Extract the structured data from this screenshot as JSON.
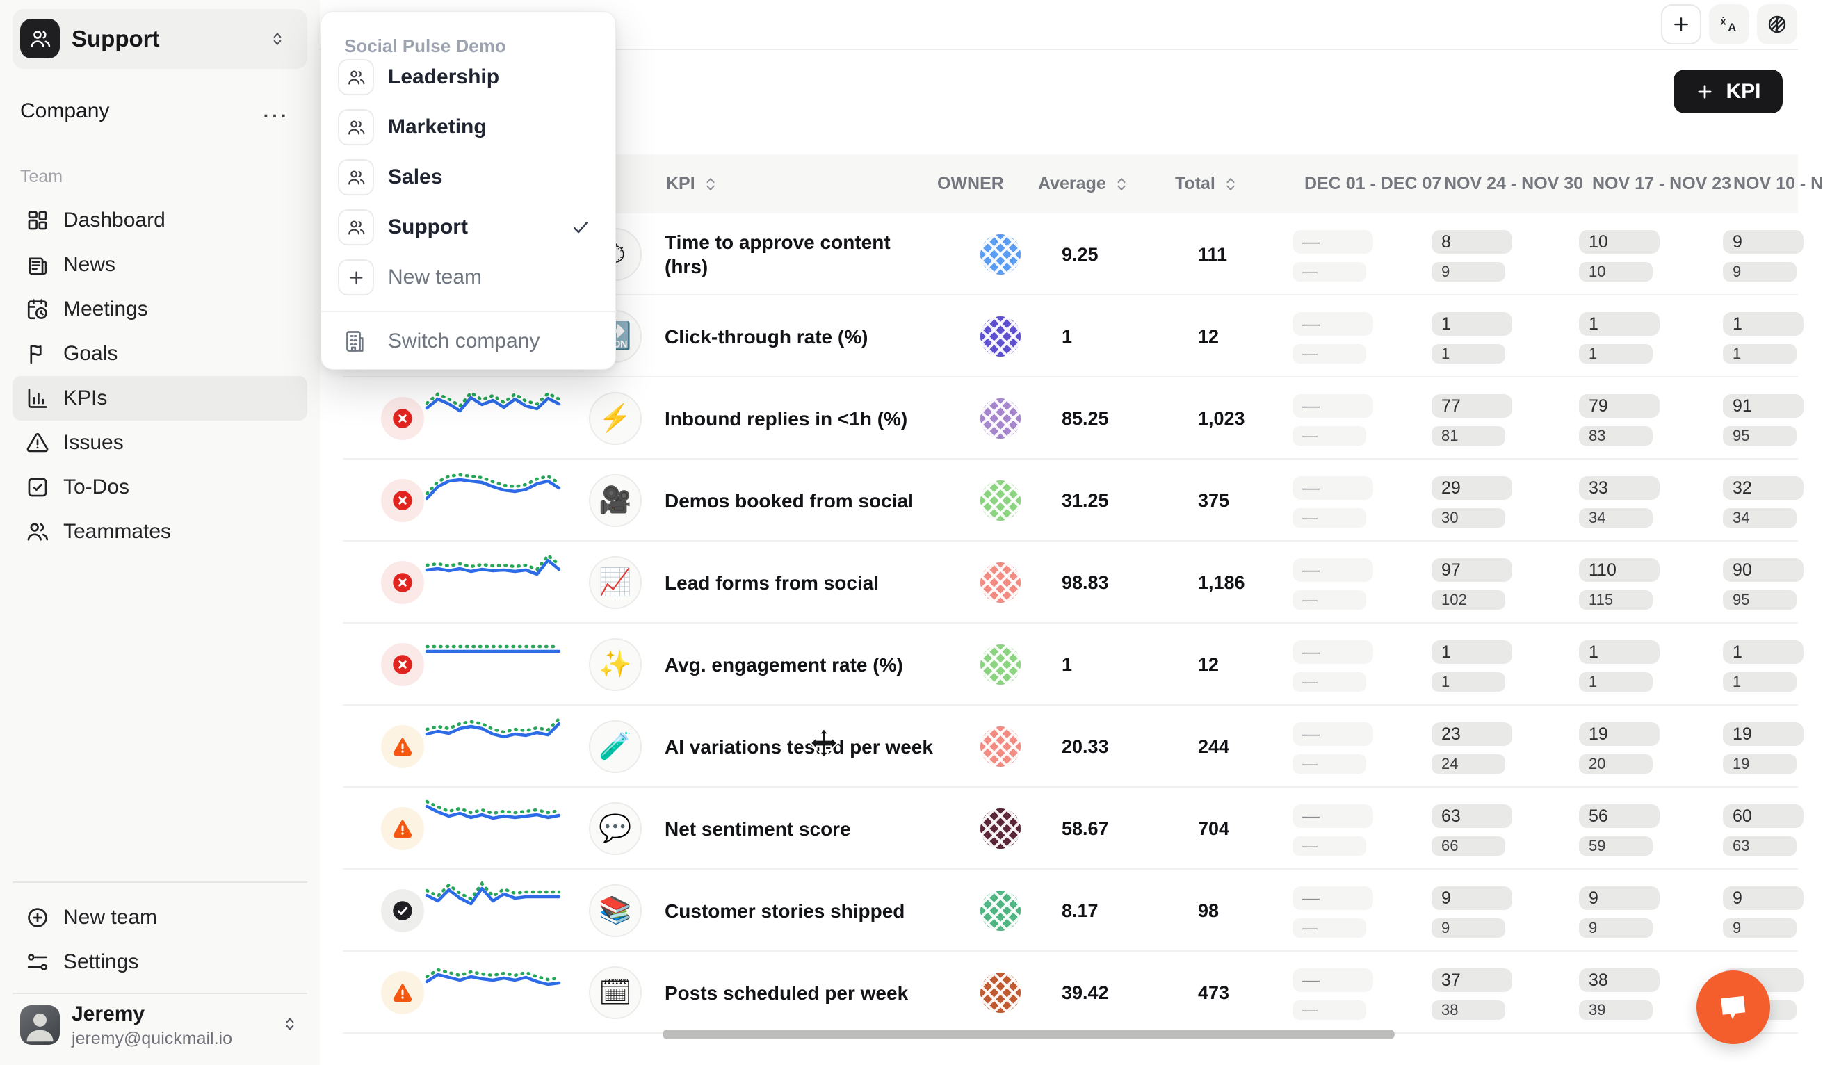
{
  "sidebar": {
    "team_switcher": {
      "label": "Support",
      "icon": "users"
    },
    "company_row": {
      "label": "Company",
      "menu_icon": "ellipsis"
    },
    "section_label": "Team",
    "nav": [
      {
        "label": "Dashboard",
        "icon": "dashboard",
        "active": false
      },
      {
        "label": "News",
        "icon": "news",
        "active": false
      },
      {
        "label": "Meetings",
        "icon": "calendar-clock",
        "active": false
      },
      {
        "label": "Goals",
        "icon": "flag",
        "active": false
      },
      {
        "label": "KPIs",
        "icon": "bar-chart",
        "active": true
      },
      {
        "label": "Issues",
        "icon": "alert-triangle",
        "active": false
      },
      {
        "label": "To-Dos",
        "icon": "square-check",
        "active": false
      },
      {
        "label": "Teammates",
        "icon": "users",
        "active": false
      }
    ],
    "footer_nav": [
      {
        "label": "New team",
        "icon": "plus-circle"
      },
      {
        "label": "Settings",
        "icon": "sliders"
      }
    ],
    "user": {
      "name": "Jeremy",
      "email": "jeremy@quickmail.io"
    }
  },
  "team_menu": {
    "company_name": "Social Pulse Demo",
    "teams": [
      {
        "label": "Leadership",
        "selected": false
      },
      {
        "label": "Marketing",
        "selected": false
      },
      {
        "label": "Sales",
        "selected": false
      },
      {
        "label": "Support",
        "selected": true
      }
    ],
    "new_team_label": "New team",
    "switch_company_label": "Switch company"
  },
  "topbar": {
    "kpi_button_label": "KPI"
  },
  "table": {
    "headers": {
      "kpi": "KPI",
      "owner": "OWNER",
      "average": "Average",
      "total": "Total",
      "weeks": [
        "DEC 01 - DEC 07",
        "NOV 24 - NOV 30",
        "NOV 17 - NOV 23",
        "NOV 10 - N"
      ]
    },
    "rows": [
      {
        "status": null,
        "spark": null,
        "emoji": "⏱",
        "icon_name": "stopwatch-emoji",
        "name": "Time to approve content\n(hrs)",
        "avatar_color": "#5b9cf3",
        "average": "9.25",
        "total": "111",
        "weeks": [
          [
            "—",
            "—"
          ],
          [
            "8",
            "9"
          ],
          [
            "10",
            "10"
          ],
          [
            "9",
            "9"
          ]
        ]
      },
      {
        "status": null,
        "spark": null,
        "emoji": "🔜",
        "icon_name": "soon-arrow-emoji",
        "name": "Click-through rate (%)",
        "avatar_color": "#5e50cf",
        "average": "1",
        "total": "12",
        "weeks": [
          [
            "—",
            "—"
          ],
          [
            "1",
            "1"
          ],
          [
            "1",
            "1"
          ],
          [
            "1",
            "1"
          ]
        ]
      },
      {
        "status": "fail",
        "spark": [
          30,
          17,
          24,
          34,
          15,
          25,
          19,
          29,
          17,
          27,
          31,
          16,
          24
        ],
        "emoji": "⚡",
        "icon_name": "lightning-emoji",
        "name": "Inbound replies in <1h (%)",
        "avatar_color": "#a585cb",
        "average": "85.25",
        "total": "1,023",
        "weeks": [
          [
            "—",
            "—"
          ],
          [
            "77",
            "81"
          ],
          [
            "79",
            "83"
          ],
          [
            "91",
            "95"
          ]
        ]
      },
      {
        "status": "fail",
        "spark": [
          42,
          25,
          17,
          15,
          17,
          19,
          25,
          30,
          32,
          29,
          21,
          17,
          27
        ],
        "emoji": "🎥",
        "icon_name": "movie-camera-emoji",
        "name": "Demos booked from social",
        "avatar_color": "#8cd382",
        "average": "31.25",
        "total": "375",
        "weeks": [
          [
            "—",
            "—"
          ],
          [
            "29",
            "30"
          ],
          [
            "33",
            "34"
          ],
          [
            "32",
            "34"
          ]
        ]
      },
      {
        "status": "fail",
        "spark": [
          27,
          25,
          28,
          25,
          29,
          26,
          28,
          27,
          29,
          27,
          33,
          13,
          26
        ],
        "emoji": "📈",
        "icon_name": "chart-up-emoji",
        "name": "Lead forms from social",
        "avatar_color": "#f28b82",
        "average": "98.83",
        "total": "1,186",
        "weeks": [
          [
            "—",
            "—"
          ],
          [
            "97",
            "102"
          ],
          [
            "110",
            "115"
          ],
          [
            "90",
            "95"
          ]
        ]
      },
      {
        "status": "fail",
        "spark": [
          26,
          26,
          26,
          26,
          26,
          26,
          26,
          26,
          26,
          26,
          26,
          26,
          26
        ],
        "emoji": "✨",
        "icon_name": "sparkles-emoji",
        "name": "Avg. engagement rate (%)",
        "avatar_color": "#8cd382",
        "average": "1",
        "total": "12",
        "weeks": [
          [
            "—",
            "—"
          ],
          [
            "1",
            "1"
          ],
          [
            "1",
            "1"
          ],
          [
            "1",
            "1"
          ]
        ]
      },
      {
        "status": "warn",
        "spark": [
          27,
          23,
          26,
          19,
          16,
          19,
          27,
          31,
          27,
          29,
          25,
          28,
          12
        ],
        "emoji": "🧪",
        "icon_name": "test-tube-emoji",
        "name": "AI variations tested per week",
        "avatar_color": "#f28b82",
        "average": "20.33",
        "total": "244",
        "weeks": [
          [
            "—",
            "—"
          ],
          [
            "23",
            "24"
          ],
          [
            "19",
            "20"
          ],
          [
            "19",
            "19"
          ]
        ]
      },
      {
        "status": "warn",
        "spark": [
          13,
          21,
          27,
          23,
          29,
          25,
          30,
          27,
          29,
          27,
          25,
          29,
          26
        ],
        "emoji": "💬",
        "icon_name": "speech-balloon-emoji",
        "name": "Net sentiment score",
        "avatar_color": "#5c2639",
        "average": "58.67",
        "total": "704",
        "weeks": [
          [
            "—",
            "—"
          ],
          [
            "63",
            "66"
          ],
          [
            "56",
            "59"
          ],
          [
            "60",
            "63"
          ]
        ]
      },
      {
        "status": "pass",
        "spark": [
          23,
          31,
          15,
          27,
          35,
          13,
          31,
          21,
          27,
          25,
          25,
          25,
          25
        ],
        "emoji": "📚",
        "icon_name": "books-emoji",
        "name": "Customer stories shipped",
        "avatar_color": "#4eb583",
        "average": "8.17",
        "total": "98",
        "weeks": [
          [
            "—",
            "—"
          ],
          [
            "9",
            "9"
          ],
          [
            "9",
            "9"
          ],
          [
            "9",
            "9"
          ]
        ]
      },
      {
        "status": "warn",
        "spark": [
          29,
          19,
          23,
          27,
          22,
          25,
          27,
          24,
          27,
          23,
          29,
          33,
          31
        ],
        "emoji": "🗓",
        "icon_name": "calendar-emoji",
        "name": "Posts scheduled per week",
        "avatar_color": "#c05a31",
        "average": "39.42",
        "total": "473",
        "weeks": [
          [
            "—",
            "—"
          ],
          [
            "37",
            "38"
          ],
          [
            "38",
            "39"
          ],
          [
            "",
            ""
          ]
        ]
      }
    ]
  },
  "colors": {
    "accent_dark": "#18181b",
    "chat_bubble": "#f45e2c",
    "spark_line": "#2e6be6",
    "spark_goal": "#27a657",
    "status_fail": "#e02420",
    "status_warn": "#f4570f",
    "status_pass": "#202024"
  }
}
